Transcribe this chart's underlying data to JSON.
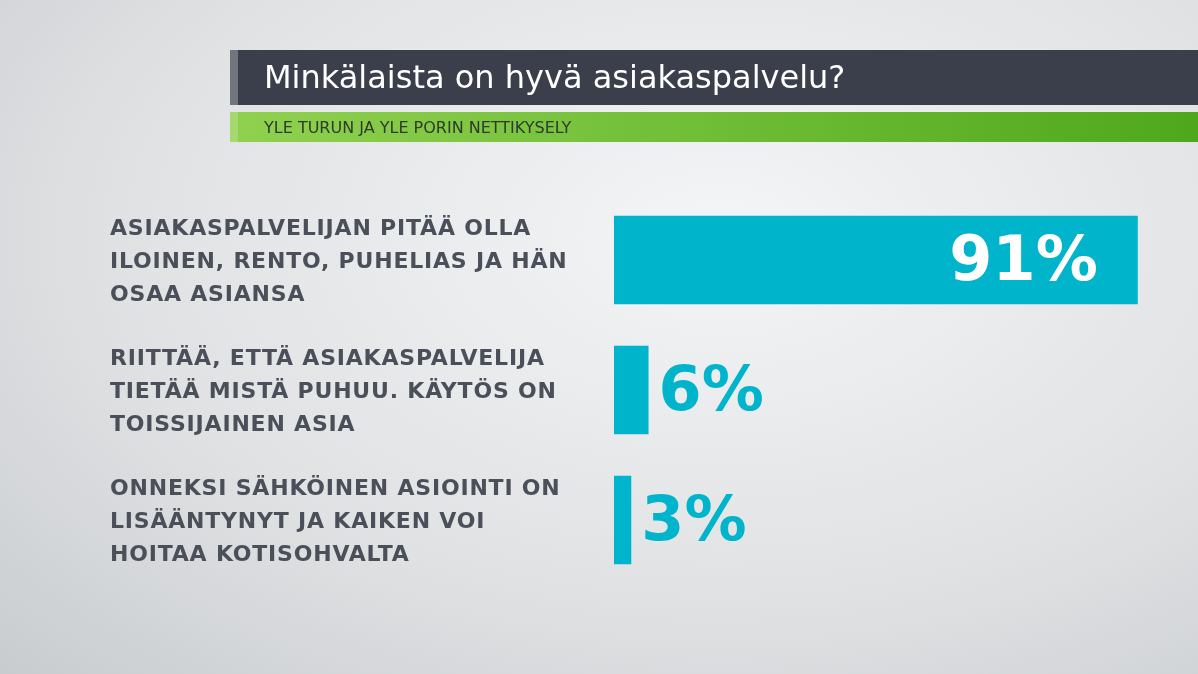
{
  "chart_data": {
    "type": "bar",
    "orientation": "horizontal",
    "title": "Minkälaista on hyvä asiakaspalvelu?",
    "subtitle": "YLE TURUN JA YLE PORIN NETTIKYSELY",
    "categories": [
      "ASIAKASPALVELIJAN PITÄÄ OLLA ILOINEN, RENTO, PUHELIAS JA HÄN OSAA ASIANSA",
      "RIITTÄÄ, ETTÄ ASIAKASPALVELIJA TIETÄÄ MISTÄ PUHUU. KÄYTÖS ON TOISSIJAINEN ASIA",
      "ONNEKSI SÄHKÖINEN ASIOINTI ON LISÄÄNTYNYT JA KAIKEN VOI HOITAA KOTISOHVALTA"
    ],
    "values": [
      91,
      6,
      3
    ],
    "color": "#00b4cc",
    "value_labels": [
      "91%",
      "6%",
      "3%"
    ]
  }
}
